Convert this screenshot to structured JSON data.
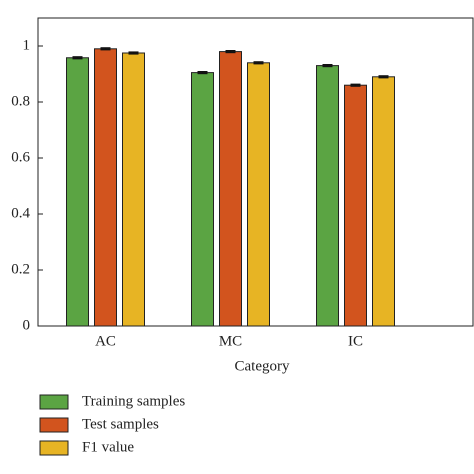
{
  "chart_data": {
    "type": "bar",
    "x_label": "Category",
    "categories": [
      "AC",
      "MC",
      "IC"
    ],
    "series": [
      {
        "name": "Training samples",
        "color": "#5ba443",
        "values": [
          0.958,
          0.905,
          0.93
        ],
        "errors": [
          0.003,
          0.003,
          0.003
        ]
      },
      {
        "name": "Test samples",
        "color": "#d2541e",
        "values": [
          0.99,
          0.98,
          0.86
        ],
        "errors": [
          0.003,
          0.003,
          0.003
        ]
      },
      {
        "name": "F1 value",
        "color": "#e7b424",
        "values": [
          0.975,
          0.94,
          0.89
        ],
        "errors": [
          0.003,
          0.003,
          0.003
        ]
      }
    ],
    "ylim": [
      0,
      1.1
    ],
    "yticks": [
      0,
      0.2,
      0.4,
      0.6,
      0.8,
      1
    ],
    "grid": false,
    "legend": "bottom"
  }
}
